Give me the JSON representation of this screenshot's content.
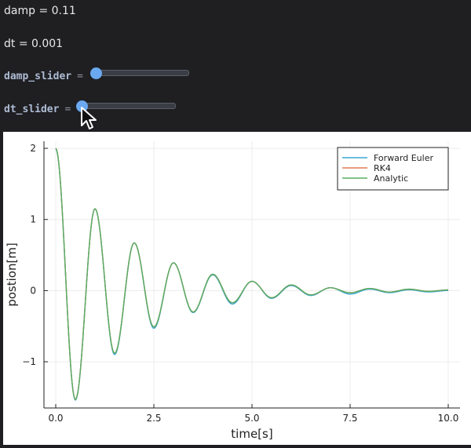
{
  "controls": {
    "damp_text": "damp = 0.11",
    "dt_text": "dt = 0.001",
    "damp_slider_label": "damp_slider",
    "dt_slider_label": "dt_slider",
    "equals": "=",
    "damp_slider_value": 0.11,
    "dt_slider_value": 0.001
  },
  "colors": {
    "forward_euler": "#3aa7d6",
    "rk4": "#e07b54",
    "analytic": "#58ad62"
  },
  "chart_data": {
    "type": "line",
    "title": "",
    "xlabel": "time[s]",
    "ylabel": "postion[m]",
    "xlim": [
      -0.3,
      10.3
    ],
    "ylim": [
      -1.65,
      2.1
    ],
    "xticks": [
      "0.0",
      "2.5",
      "5.0",
      "7.5",
      "10.0"
    ],
    "xtick_values": [
      0,
      2.5,
      5,
      7.5,
      10
    ],
    "yticks": [
      "-1",
      "0",
      "1",
      "2"
    ],
    "ytick_values": [
      -1,
      0,
      1,
      2
    ],
    "grid": true,
    "legend_position": "top-right",
    "series": [
      {
        "name": "Forward Euler",
        "x": [
          0,
          0.5,
          1.0,
          1.5,
          2.0,
          2.5,
          3.0,
          3.5,
          4.0,
          4.5,
          5.0,
          5.5,
          6.0,
          6.5,
          7.0,
          7.5,
          8.0,
          8.5,
          9.0,
          9.5,
          10.0
        ],
        "y": [
          2.0,
          -1.53,
          1.16,
          -0.89,
          0.68,
          -0.52,
          0.4,
          -0.3,
          0.23,
          -0.18,
          0.14,
          -0.1,
          0.08,
          -0.06,
          0.05,
          -0.04,
          0.03,
          -0.02,
          0.02,
          -0.01,
          0.01
        ]
      },
      {
        "name": "RK4",
        "x": [
          0,
          0.5,
          1.0,
          1.5,
          2.0,
          2.5,
          3.0,
          3.5,
          4.0,
          4.5,
          5.0,
          5.5,
          6.0,
          6.5,
          7.0,
          7.5,
          8.0,
          8.5,
          9.0,
          9.5,
          10.0
        ],
        "y": [
          2.0,
          -1.53,
          1.15,
          -0.88,
          0.67,
          -0.51,
          0.39,
          -0.3,
          0.23,
          -0.17,
          0.13,
          -0.1,
          0.08,
          -0.06,
          0.04,
          -0.03,
          0.03,
          -0.02,
          0.02,
          -0.01,
          0.01
        ]
      },
      {
        "name": "Analytic",
        "x": [
          0,
          0.5,
          1.0,
          1.5,
          2.0,
          2.5,
          3.0,
          3.5,
          4.0,
          4.5,
          5.0,
          5.5,
          6.0,
          6.5,
          7.0,
          7.5,
          8.0,
          8.5,
          9.0,
          9.5,
          10.0
        ],
        "y": [
          2.0,
          -1.53,
          1.15,
          -0.88,
          0.67,
          -0.51,
          0.39,
          -0.3,
          0.23,
          -0.17,
          0.13,
          -0.1,
          0.08,
          -0.06,
          0.04,
          -0.03,
          0.03,
          -0.02,
          0.02,
          -0.01,
          0.01
        ]
      }
    ]
  }
}
